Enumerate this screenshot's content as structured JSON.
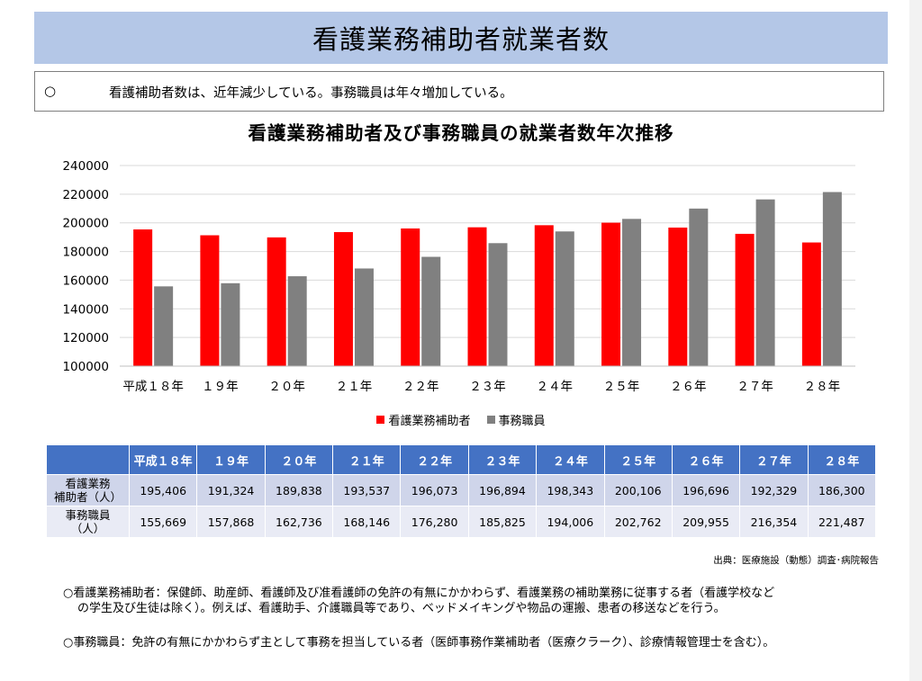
{
  "header": {
    "title": "看護業務補助者就業者数"
  },
  "summary": {
    "mark": "○",
    "text": "看護補助者数は、近年減少している。事務職員は年々増加している。"
  },
  "chart_data": {
    "type": "bar",
    "title": "看護業務補助者及び事務職員の就業者数年次推移",
    "categories": [
      "平成１８年",
      "１９年",
      "２０年",
      "２１年",
      "２２年",
      "２３年",
      "２４年",
      "２５年",
      "２６年",
      "２７年",
      "２８年"
    ],
    "series": [
      {
        "name": "看護業務補助者",
        "color": "#ff0000",
        "values": [
          195406,
          191324,
          189838,
          193537,
          196073,
          196894,
          198343,
          200106,
          196696,
          192329,
          186300
        ]
      },
      {
        "name": "事務職員",
        "color": "#808080",
        "values": [
          155669,
          157868,
          162736,
          168146,
          176280,
          185825,
          194006,
          202762,
          209955,
          216354,
          221487
        ]
      }
    ],
    "ylim": [
      100000,
      240000
    ],
    "yticks": [
      "100000",
      "120000",
      "140000",
      "160000",
      "180000",
      "200000",
      "220000",
      "240000"
    ],
    "grid": true,
    "legend": "bottom"
  },
  "table": {
    "headers": [
      "平成１８年",
      "１９年",
      "２０年",
      "２１年",
      "２２年",
      "２３年",
      "２４年",
      "２５年",
      "２６年",
      "２７年",
      "２８年"
    ],
    "rows": [
      {
        "label_line1": "看護業務",
        "label_line2": "補助者（人）",
        "cells": [
          "195,406",
          "191,324",
          "189,838",
          "193,537",
          "196,073",
          "196,894",
          "198,343",
          "200,106",
          "196,696",
          "192,329",
          "186,300"
        ]
      },
      {
        "label_line1": "事務職員",
        "label_line2": "（人）",
        "cells": [
          "155,669",
          "157,868",
          "162,736",
          "168,146",
          "176,280",
          "185,825",
          "194,006",
          "202,762",
          "209,955",
          "216,354",
          "221,487"
        ]
      }
    ]
  },
  "source": "出典：医療施設（動態）調査･病院報告",
  "notes": {
    "note1_line1": "○看護業務補助者：保健師、助産師、看護師及び准看護師の免許の有無にかかわらず、看護業務の補助業務に従事する者（看護学校など",
    "note1_line2": "の学生及び生徒は除く）。例えば、看護助手、介護職員等であり、ベッドメイキングや物品の運搬、患者の移送などを行う。",
    "note2": "○事務職員：免許の有無にかかわらず主として事務を担当している者（医師事務作業補助者（医療クラーク）、診療情報管理士を含む）。"
  }
}
